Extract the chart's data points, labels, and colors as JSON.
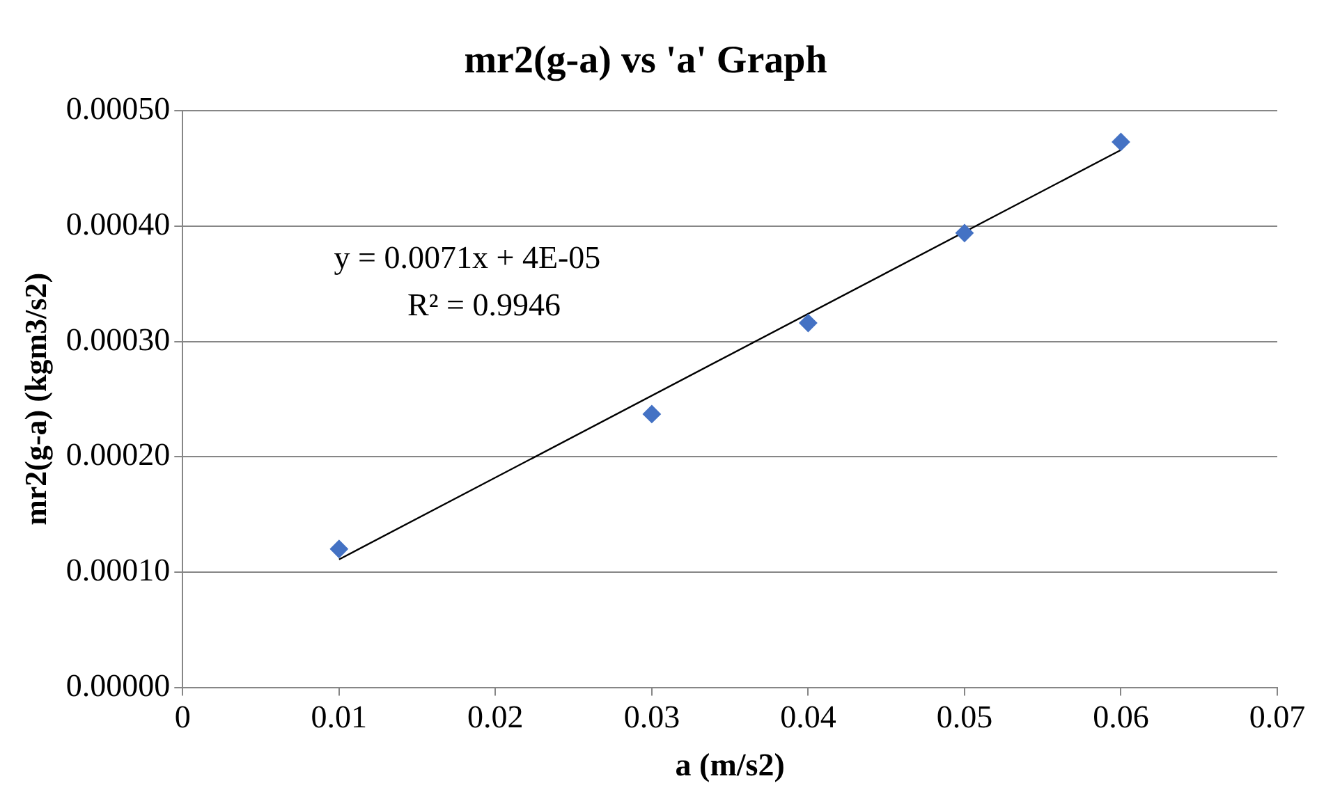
{
  "chart_data": {
    "type": "scatter",
    "title": "mr2(g-a) vs 'a' Graph",
    "xlabel": "a (m/s2)",
    "ylabel": "mr2(g-a) (kgm3/s2)",
    "series": [
      {
        "type": "scatter",
        "color": "#4472c4",
        "marker": "diamond",
        "x": [
          0.01,
          0.03,
          0.04,
          0.05,
          0.06
        ],
        "values": [
          0.00012,
          0.000237,
          0.000316,
          0.000394,
          0.000473
        ]
      },
      {
        "type": "line",
        "color": "#000000",
        "marker": "none",
        "x": [
          0.01,
          0.06
        ],
        "values": [
          0.000111,
          0.000466
        ]
      }
    ],
    "xlim": [
      0,
      0.07
    ],
    "xticks": [
      0,
      0.01,
      0.02,
      0.03,
      0.04,
      0.05,
      0.06,
      0.07
    ],
    "ylim": [
      0,
      0.0005
    ],
    "yticks": [
      {
        "value": 0,
        "label": "0.00000"
      },
      {
        "value": 0.0001,
        "label": "0.00010"
      },
      {
        "value": 0.0002,
        "label": "0.00020"
      },
      {
        "value": 0.0003,
        "label": "0.00030"
      },
      {
        "value": 0.0004,
        "label": "0.00040"
      },
      {
        "value": 0.0005,
        "label": "0.00050"
      }
    ],
    "grid": "y",
    "legend": false,
    "annotations": [
      "y = 0.0071x + 4E-05",
      "R² = 0.9946"
    ]
  }
}
